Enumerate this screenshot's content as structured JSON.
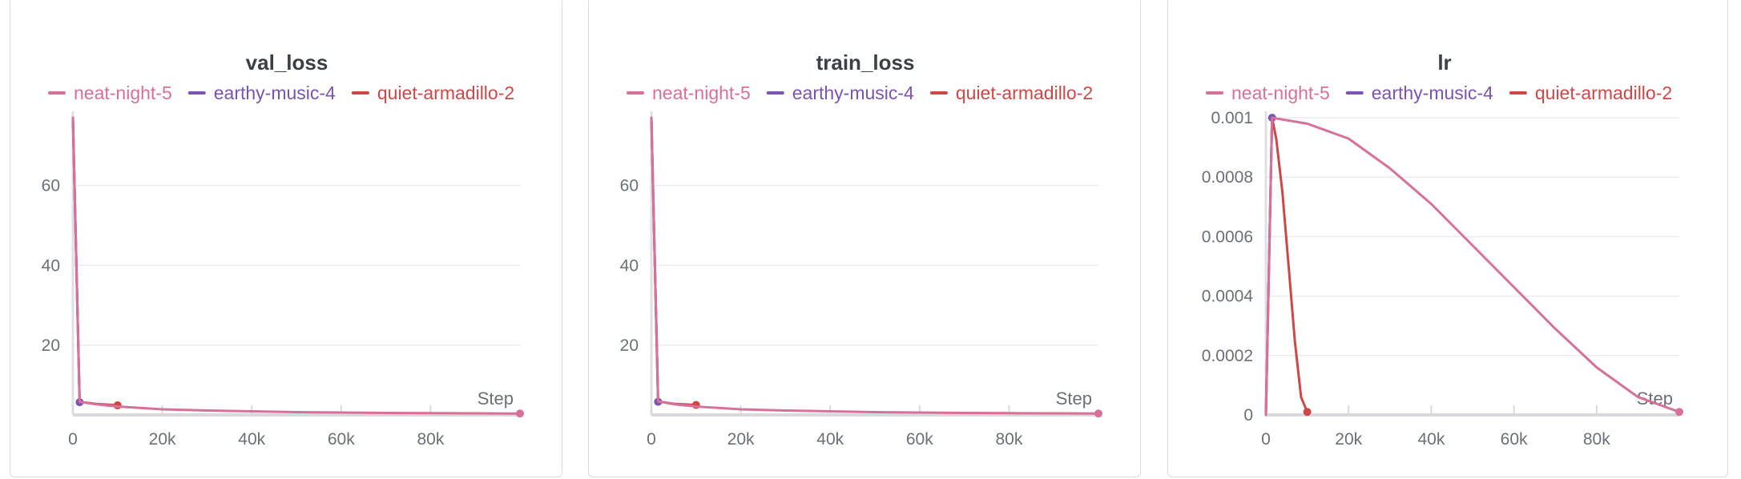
{
  "chart_data": [
    {
      "type": "line",
      "title": "val_loss",
      "xlabel": "Step",
      "ylabel": "",
      "xlim": [
        0,
        100000
      ],
      "ylim": [
        2.5,
        77
      ],
      "xticks": [
        0,
        20000,
        40000,
        60000,
        80000
      ],
      "xtick_labels": [
        "0",
        "20k",
        "40k",
        "60k",
        "80k"
      ],
      "yticks": [
        20,
        40,
        60
      ],
      "ytick_labels": [
        "20",
        "40",
        "60"
      ],
      "grid": true,
      "legend_position": "top",
      "series": [
        {
          "name": "neat-night-5",
          "color": "#d6719a",
          "x": [
            0,
            1500,
            5000,
            10000,
            20000,
            30000,
            40000,
            50000,
            60000,
            70000,
            80000,
            90000,
            100000
          ],
          "y": [
            77,
            5.8,
            5.2,
            4.6,
            3.9,
            3.6,
            3.4,
            3.2,
            3.1,
            3.0,
            2.95,
            2.9,
            2.85
          ]
        },
        {
          "name": "earthy-music-4",
          "color": "#7a54b0",
          "x": [
            0,
            1500
          ],
          "y": [
            77,
            5.7
          ]
        },
        {
          "name": "quiet-armadillo-2",
          "color": "#cc4848",
          "x": [
            0,
            1500,
            5000,
            10000
          ],
          "y": [
            77,
            5.8,
            5.3,
            4.9
          ]
        }
      ]
    },
    {
      "type": "line",
      "title": "train_loss",
      "xlabel": "Step",
      "ylabel": "",
      "xlim": [
        0,
        100000
      ],
      "ylim": [
        2.5,
        77
      ],
      "xticks": [
        0,
        20000,
        40000,
        60000,
        80000
      ],
      "xtick_labels": [
        "0",
        "20k",
        "40k",
        "60k",
        "80k"
      ],
      "yticks": [
        20,
        40,
        60
      ],
      "ytick_labels": [
        "20",
        "40",
        "60"
      ],
      "grid": true,
      "legend_position": "top",
      "series": [
        {
          "name": "neat-night-5",
          "color": "#d6719a",
          "x": [
            0,
            1500,
            5000,
            10000,
            20000,
            30000,
            40000,
            50000,
            60000,
            70000,
            80000,
            90000,
            100000
          ],
          "y": [
            77,
            5.9,
            5.2,
            4.6,
            3.9,
            3.6,
            3.4,
            3.2,
            3.1,
            3.0,
            2.95,
            2.9,
            2.85
          ]
        },
        {
          "name": "earthy-music-4",
          "color": "#7a54b0",
          "x": [
            0,
            1500
          ],
          "y": [
            77,
            5.8
          ]
        },
        {
          "name": "quiet-armadillo-2",
          "color": "#cc4848",
          "x": [
            0,
            1500,
            5000,
            10000
          ],
          "y": [
            77,
            5.9,
            5.3,
            5.0
          ]
        }
      ]
    },
    {
      "type": "line",
      "title": "lr",
      "xlabel": "Step",
      "ylabel": "",
      "xlim": [
        0,
        100000
      ],
      "ylim": [
        0,
        0.001
      ],
      "xticks": [
        0,
        20000,
        40000,
        60000,
        80000
      ],
      "xtick_labels": [
        "0",
        "20k",
        "40k",
        "60k",
        "80k"
      ],
      "yticks": [
        0,
        0.0002,
        0.0004,
        0.0006,
        0.0008,
        0.001
      ],
      "ytick_labels": [
        "0",
        "0.0002",
        "0.0004",
        "0.0006",
        "0.0008",
        "0.001"
      ],
      "grid": true,
      "legend_position": "top",
      "series": [
        {
          "name": "neat-night-5",
          "color": "#d6719a",
          "x": [
            0,
            1500,
            10000,
            20000,
            30000,
            40000,
            50000,
            60000,
            70000,
            80000,
            90000,
            100000
          ],
          "y": [
            0,
            0.001,
            0.00098,
            0.00093,
            0.00083,
            0.00071,
            0.00057,
            0.00043,
            0.00029,
            0.00016,
            6e-05,
            1e-05
          ]
        },
        {
          "name": "earthy-music-4",
          "color": "#7a54b0",
          "x": [
            0,
            1500
          ],
          "y": [
            0,
            0.001
          ]
        },
        {
          "name": "quiet-armadillo-2",
          "color": "#cc4848",
          "x": [
            0,
            1500,
            2500,
            4000,
            5500,
            7000,
            8500,
            10000
          ],
          "y": [
            0,
            0.001,
            0.00093,
            0.00075,
            0.0005,
            0.00025,
            6e-05,
            1e-05
          ]
        }
      ]
    }
  ]
}
